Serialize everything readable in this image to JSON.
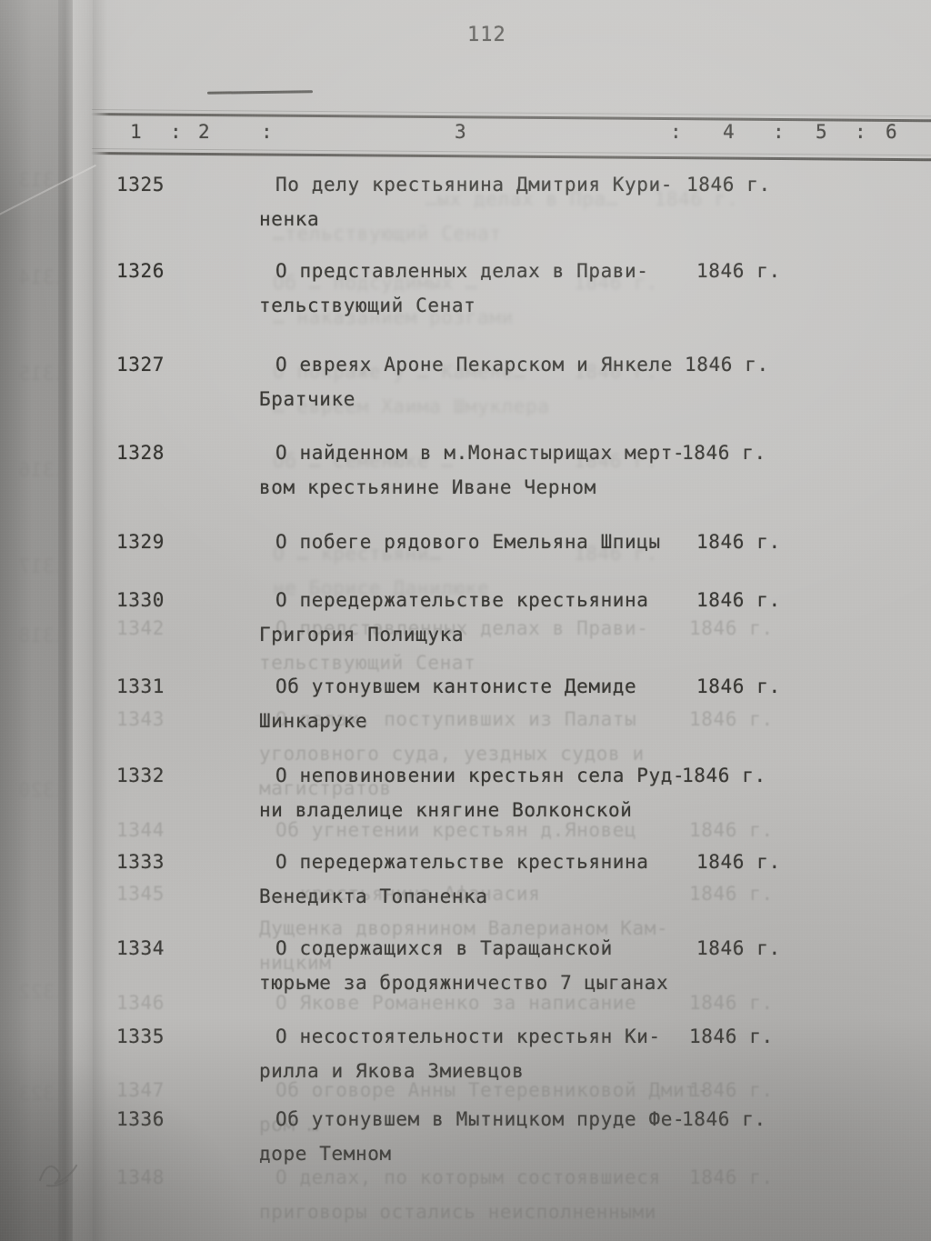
{
  "page_number": "112",
  "table_header": {
    "cells": [
      "1",
      ":",
      "2",
      ":",
      "3",
      ":",
      "4",
      ":",
      "5",
      ":",
      "6"
    ]
  },
  "entries": [
    {
      "number": "1325",
      "lines": [
        "По делу крестьянина Дмитрия Кури-",
        "ненка"
      ],
      "year": "1846 г."
    },
    {
      "number": "1326",
      "lines": [
        "О представленных делах в Прави-",
        "тельствующий Сенат"
      ],
      "year": "1846 г."
    },
    {
      "number": "1327",
      "lines": [
        "О евреях Ароне Пекарском и Янкеле",
        "Братчике"
      ],
      "year": "1846 г."
    },
    {
      "number": "1328",
      "lines": [
        "О найденном в м.Монастырищах мерт-",
        "вом крестьянине Иване Черном"
      ],
      "year": "1846 г."
    },
    {
      "number": "1329",
      "lines": [
        "О побеге рядового Емельяна Шпицы"
      ],
      "year": "1846 г."
    },
    {
      "number": "1330",
      "lines": [
        "О передержательстве крестьянина",
        "Григория Полищука"
      ],
      "year": "1846 г."
    },
    {
      "number": "1331",
      "lines": [
        "Об утонувшем кантонисте Демиде",
        "Шинкаруке"
      ],
      "year": "1846 г."
    },
    {
      "number": "1332",
      "lines": [
        "О неповиновении крестьян села Руд-",
        "ни владелице княгине Волконской"
      ],
      "year": "1846 г."
    },
    {
      "number": "1333",
      "lines": [
        "О передержательстве крестьянина",
        "Венедикта Топаненка"
      ],
      "year": "1846 г."
    },
    {
      "number": "1334",
      "lines": [
        "О содержащихся в Таращанской",
        "тюрьме за бродяжничество 7 цыганах"
      ],
      "year": "1846 г."
    },
    {
      "number": "1335",
      "lines": [
        "О несостоятельности крестьян Ки-",
        "рилла и Якова Змиевцов"
      ],
      "year": "1846 г."
    },
    {
      "number": "1336",
      "lines": [
        "Об утонувшем в Мытницком пруде Фе-",
        "доре Темном"
      ],
      "year": "1846 г."
    }
  ],
  "bleedthrough": {
    "entries": [
      {
        "number": "1342",
        "lines": [
          "О представленных делах в Прави-",
          "тельствующий Сенат"
        ],
        "year": "1846 г."
      },
      {
        "number": "1343",
        "lines": [
          "О делах, поступивших из Палаты",
          "уголовного суда, уездных судов и",
          "магистратов"
        ],
        "year": "1846 г."
      },
      {
        "number": "1344",
        "lines": [
          "Об угнетении крестьян д.Яновец"
        ],
        "year": "1846 г."
      },
      {
        "number": "1345",
        "lines": [
          "… крестьянина Афанасия",
          "Дущенка дворянином Валерианом Кам-",
          "ницким"
        ],
        "year": "1846 г."
      },
      {
        "number": "1346",
        "lines": [
          "О Якове Романенко за написание"
        ],
        "year": "1846 г."
      },
      {
        "number": "1347",
        "lines": [
          "Об оговоре Анны Тетеревниковой Дмит-",
          "ром …"
        ],
        "year": "1846 г."
      },
      {
        "number": "1348",
        "lines": [
          "О делах, по которым состоявшиеся",
          "приговоры остались неисполненными"
        ],
        "year": "1846 г."
      }
    ],
    "faint_fragments": [
      {
        "text": "…ых делах в Пра…   1846 г."
      },
      {
        "text": "…тельствующий Сенат"
      },
      {
        "text": "Об … подсудимых …        1846 г."
      },
      {
        "text": "… наказанием розгами"
      },
      {
        "text": "О покраже у … Камене…    1846 г."
      },
      {
        "text": "… евреем Хаима Шмуклера"
      },
      {
        "text": "Об … Семенюке …          1846 г."
      },
      {
        "text": "О … крестьяни…           1846 г."
      },
      {
        "text": "не Борисе Данилюке"
      }
    ],
    "margin_numbers": [
      "1313",
      "1314",
      "1315",
      "1316",
      "1317",
      "1318",
      "1320",
      "1322",
      "1323"
    ]
  },
  "colors": {
    "paper": "#c3c2c0",
    "ink": "#2c2b27",
    "ghost": "#7c7b77"
  }
}
